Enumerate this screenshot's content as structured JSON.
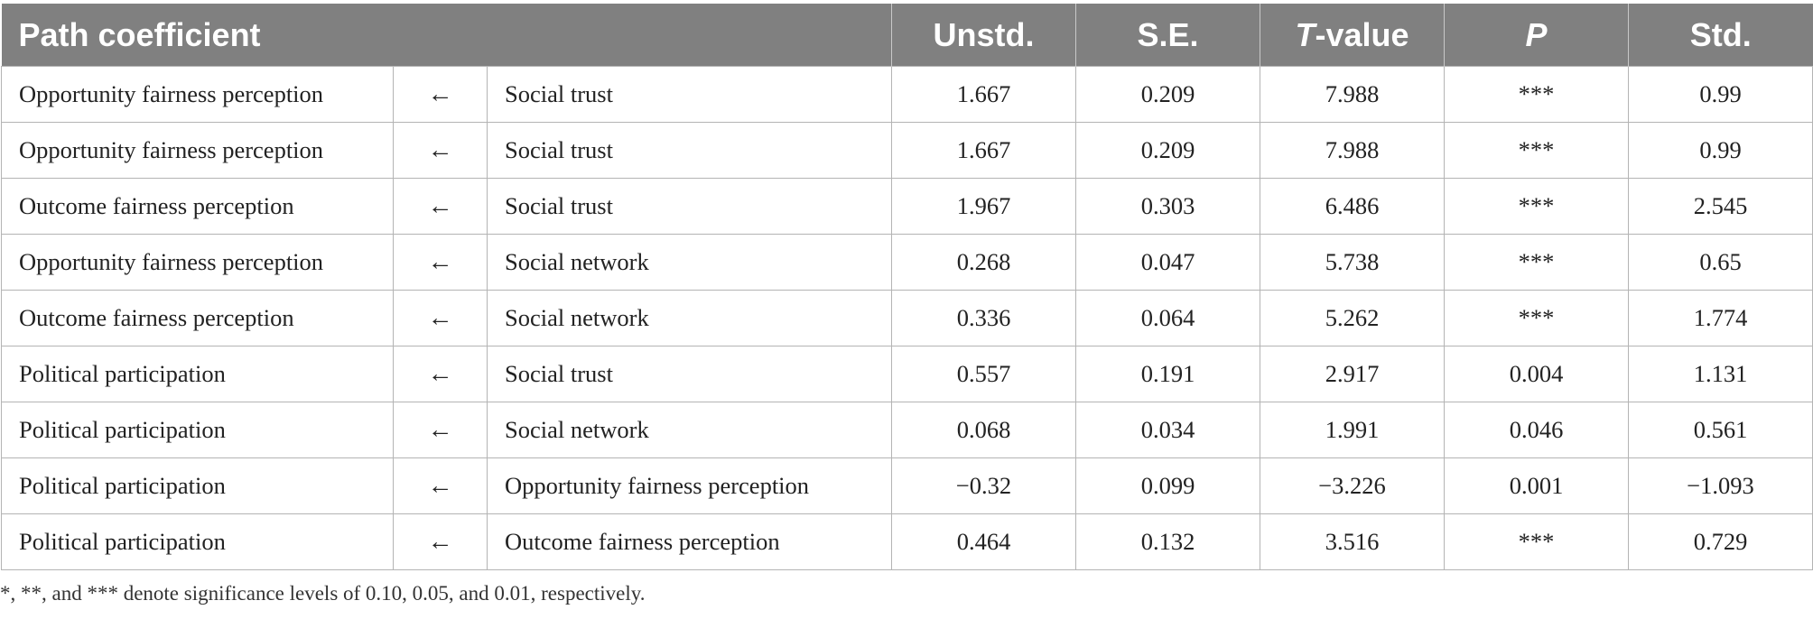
{
  "table": {
    "headers": {
      "path": "Path coefficient",
      "unstd": "Unstd.",
      "se": "S.E.",
      "t_italic": "T",
      "t_rest": "-value",
      "p": "P",
      "std": "Std."
    },
    "rows": [
      {
        "dep": "Opportunity fairness perception",
        "arrow": "←",
        "indep": "Social trust",
        "unstd": "1.667",
        "se": "0.209",
        "t": "7.988",
        "p": "***",
        "std": "0.99"
      },
      {
        "dep": "Opportunity fairness perception",
        "arrow": "←",
        "indep": "Social trust",
        "unstd": "1.667",
        "se": "0.209",
        "t": "7.988",
        "p": "***",
        "std": "0.99"
      },
      {
        "dep": "Outcome fairness perception",
        "arrow": "←",
        "indep": "Social trust",
        "unstd": "1.967",
        "se": "0.303",
        "t": "6.486",
        "p": "***",
        "std": "2.545"
      },
      {
        "dep": "Opportunity fairness perception",
        "arrow": "←",
        "indep": "Social network",
        "unstd": "0.268",
        "se": "0.047",
        "t": "5.738",
        "p": "***",
        "std": "0.65"
      },
      {
        "dep": "Outcome fairness perception",
        "arrow": "←",
        "indep": "Social network",
        "unstd": "0.336",
        "se": "0.064",
        "t": "5.262",
        "p": "***",
        "std": "1.774"
      },
      {
        "dep": "Political participation",
        "arrow": "←",
        "indep": "Social trust",
        "unstd": "0.557",
        "se": "0.191",
        "t": "2.917",
        "p": "0.004",
        "std": "1.131"
      },
      {
        "dep": "Political participation",
        "arrow": "←",
        "indep": "Social network",
        "unstd": "0.068",
        "se": "0.034",
        "t": "1.991",
        "p": "0.046",
        "std": "0.561"
      },
      {
        "dep": "Political participation",
        "arrow": "←",
        "indep": "Opportunity fairness perception",
        "unstd": "−0.32",
        "se": "0.099",
        "t": "−3.226",
        "p": "0.001",
        "std": "−1.093"
      },
      {
        "dep": "Political participation",
        "arrow": "←",
        "indep": "Outcome fairness perception",
        "unstd": "0.464",
        "se": "0.132",
        "t": "3.516",
        "p": "***",
        "std": "0.729"
      }
    ]
  },
  "note": "*, **, and *** denote significance levels of 0.10, 0.05, and 0.01, respectively."
}
